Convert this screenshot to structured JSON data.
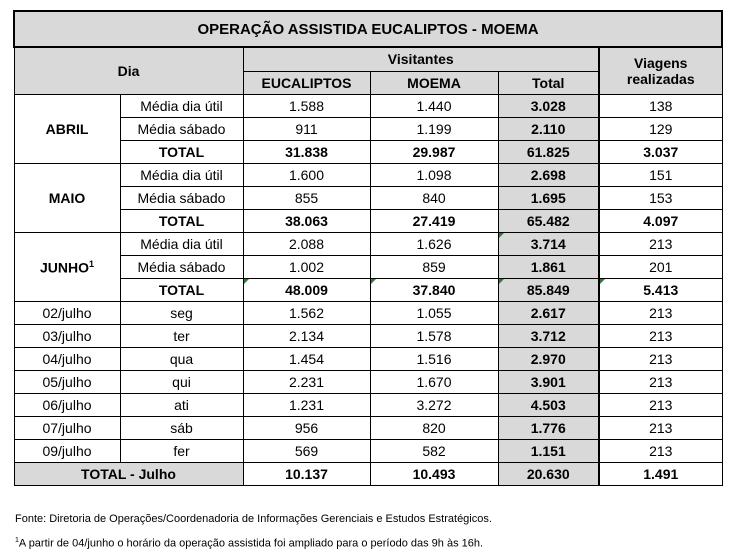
{
  "title": "OPERAÇÃO ASSISTIDA EUCALIPTOS - MOEMA",
  "headers": {
    "dia": "Dia",
    "visitantes": "Visitantes",
    "eucaliptos": "EUCALIPTOS",
    "moema": "MOEMA",
    "total": "Total",
    "viagens_line1": "Viagens",
    "viagens_line2": "realizadas"
  },
  "months": [
    {
      "name": "ABRIL",
      "sup": "",
      "rows": [
        {
          "label": "Média dia útil",
          "eucaliptos": "1.588",
          "moema": "1.440",
          "total": "3.028",
          "viagens": "138"
        },
        {
          "label": "Média sábado",
          "eucaliptos": "911",
          "moema": "1.199",
          "total": "2.110",
          "viagens": "129"
        }
      ],
      "total": {
        "label": "TOTAL",
        "eucaliptos": "31.838",
        "moema": "29.987",
        "total": "61.825",
        "viagens": "3.037"
      }
    },
    {
      "name": "MAIO",
      "sup": "",
      "rows": [
        {
          "label": "Média dia útil",
          "eucaliptos": "1.600",
          "moema": "1.098",
          "total": "2.698",
          "viagens": "151"
        },
        {
          "label": "Média sábado",
          "eucaliptos": "855",
          "moema": "840",
          "total": "1.695",
          "viagens": "153"
        }
      ],
      "total": {
        "label": "TOTAL",
        "eucaliptos": "38.063",
        "moema": "27.419",
        "total": "65.482",
        "viagens": "4.097"
      }
    },
    {
      "name": "JUNHO",
      "sup": "1",
      "rows": [
        {
          "label": "Média dia útil",
          "eucaliptos": "2.088",
          "moema": "1.626",
          "total": "3.714",
          "viagens": "213"
        },
        {
          "label": "Média sábado",
          "eucaliptos": "1.002",
          "moema": "859",
          "total": "1.861",
          "viagens": "201"
        }
      ],
      "total": {
        "label": "TOTAL",
        "eucaliptos": "48.009",
        "moema": "37.840",
        "total": "85.849",
        "viagens": "5.413"
      }
    }
  ],
  "days": [
    {
      "date": "02/julho",
      "weekday": "seg",
      "eucaliptos": "1.562",
      "moema": "1.055",
      "total": "2.617",
      "viagens": "213"
    },
    {
      "date": "03/julho",
      "weekday": "ter",
      "eucaliptos": "2.134",
      "moema": "1.578",
      "total": "3.712",
      "viagens": "213"
    },
    {
      "date": "04/julho",
      "weekday": "qua",
      "eucaliptos": "1.454",
      "moema": "1.516",
      "total": "2.970",
      "viagens": "213"
    },
    {
      "date": "05/julho",
      "weekday": "qui",
      "eucaliptos": "2.231",
      "moema": "1.670",
      "total": "3.901",
      "viagens": "213"
    },
    {
      "date": "06/julho",
      "weekday": "ati",
      "eucaliptos": "1.231",
      "moema": "3.272",
      "total": "4.503",
      "viagens": "213"
    },
    {
      "date": "07/julho",
      "weekday": "sáb",
      "eucaliptos": "956",
      "moema": "820",
      "total": "1.776",
      "viagens": "213"
    },
    {
      "date": "09/julho",
      "weekday": "fer",
      "eucaliptos": "569",
      "moema": "582",
      "total": "1.151",
      "viagens": "213"
    }
  ],
  "total_julho": {
    "label": "TOTAL - Julho",
    "eucaliptos": "10.137",
    "moema": "10.493",
    "total": "20.630",
    "viagens": "1.491"
  },
  "notes": {
    "source": "Fonte: Diretoria de Operações/Coordenadoria de Informações Gerenciais e Estudos Estratégicos.",
    "footnote_mark": "1",
    "footnote": "A partir de 04/junho o horário da operação assistida foi ampliado para o período das 9h às 16h."
  }
}
